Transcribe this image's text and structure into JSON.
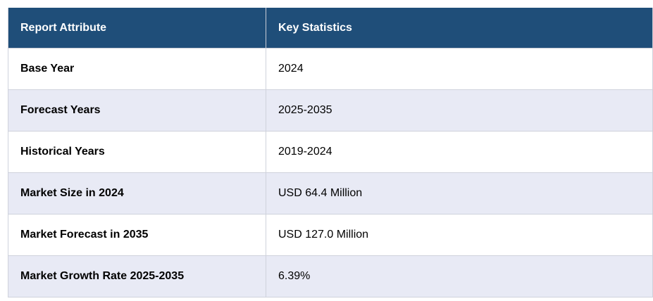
{
  "table": {
    "headers": [
      "Report Attribute",
      "Key Statistics"
    ],
    "rows": [
      {
        "attribute": "Base Year",
        "value": "2024"
      },
      {
        "attribute": "Forecast Years",
        "value": "2025-2035"
      },
      {
        "attribute": "Historical Years",
        "value": "2019-2024"
      },
      {
        "attribute": "Market Size in 2024",
        "value": "USD 64.4 Million"
      },
      {
        "attribute": "Market Forecast in 2035",
        "value": "USD 127.0 Million"
      },
      {
        "attribute": "Market Growth Rate 2025-2035",
        "value": "6.39%"
      }
    ],
    "colors": {
      "header_bg": "#1f4e79",
      "header_text": "#ffffff",
      "row_shade": "#e8eaf5",
      "row_white": "#ffffff"
    }
  }
}
